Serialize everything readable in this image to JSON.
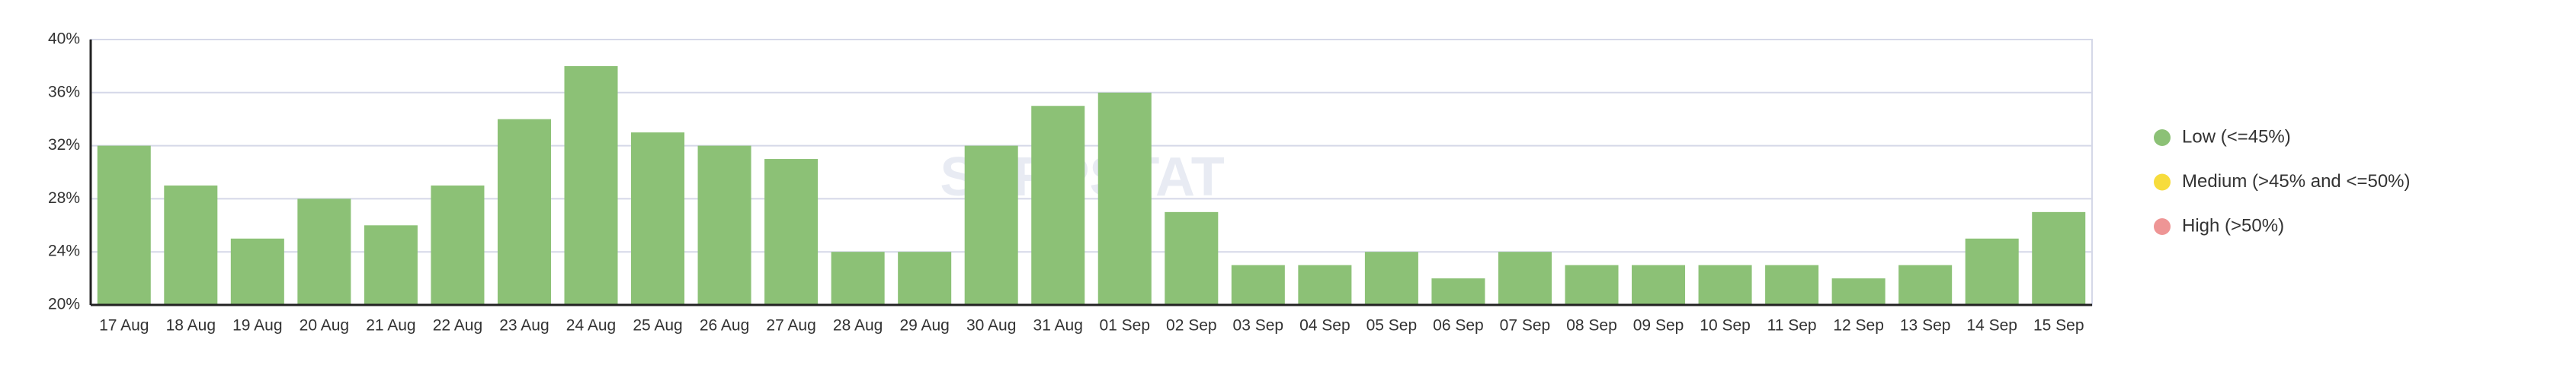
{
  "chart_data": {
    "type": "bar",
    "categories": [
      "17 Aug",
      "18 Aug",
      "19 Aug",
      "20 Aug",
      "21 Aug",
      "22 Aug",
      "23 Aug",
      "24 Aug",
      "25 Aug",
      "26 Aug",
      "27 Aug",
      "28 Aug",
      "29 Aug",
      "30 Aug",
      "31 Aug",
      "01 Sep",
      "02 Sep",
      "03 Sep",
      "04 Sep",
      "05 Sep",
      "06 Sep",
      "07 Sep",
      "08 Sep",
      "09 Sep",
      "10 Sep",
      "11 Sep",
      "12 Sep",
      "13 Sep",
      "14 Sep",
      "15 Sep"
    ],
    "values": [
      32,
      29,
      25,
      28,
      26,
      29,
      34,
      38,
      33,
      32,
      31,
      24,
      24,
      32,
      35,
      36,
      27,
      23,
      23,
      24,
      22,
      24,
      23,
      23,
      23,
      23,
      22,
      23,
      25,
      27
    ],
    "color": "#8cc176",
    "ylim": [
      20,
      40
    ],
    "yticks": [
      {
        "value": 20,
        "label": "20%"
      },
      {
        "value": 24,
        "label": "24%"
      },
      {
        "value": 28,
        "label": "28%"
      },
      {
        "value": 32,
        "label": "32%"
      },
      {
        "value": 36,
        "label": "36%"
      },
      {
        "value": 40,
        "label": "40%"
      }
    ],
    "grid": true,
    "legend": [
      {
        "name": "Low (<=45%)",
        "color": "#8cc176"
      },
      {
        "name": "Medium (>45% and <=50%)",
        "color": "#f7dc3c"
      },
      {
        "name": "High (>50%)",
        "color": "#ee9595"
      }
    ],
    "watermark": "SERPSTAT"
  }
}
